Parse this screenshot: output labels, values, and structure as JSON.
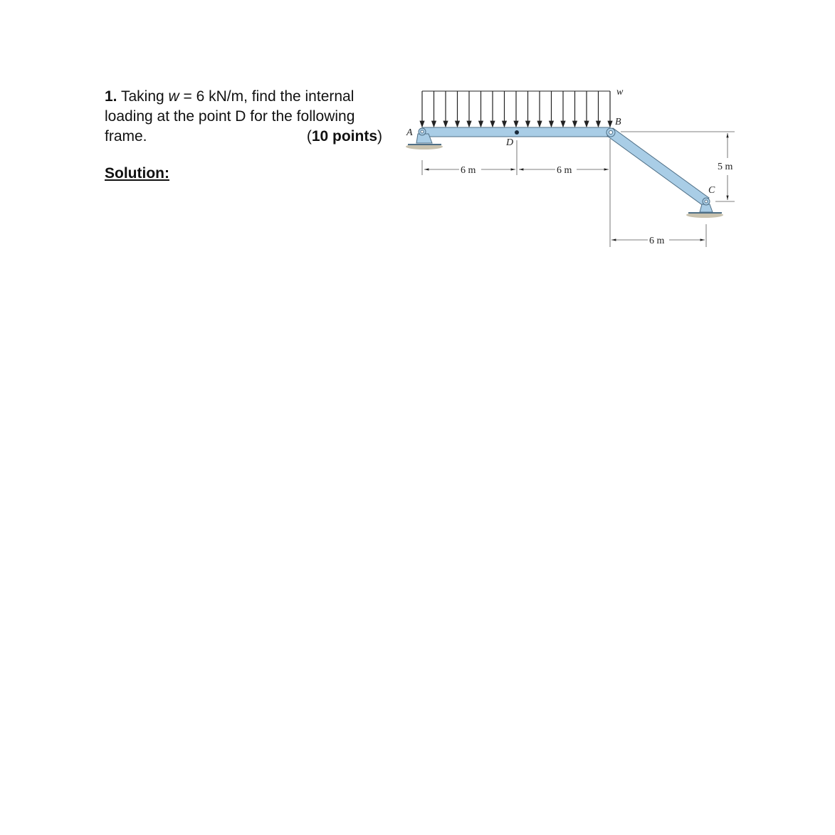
{
  "problem": {
    "number": "1.",
    "text_before_var": " Taking ",
    "variable": "w",
    "text_after_var": " = 6 kN/m, find the internal",
    "line2": "loading at the point D for the following",
    "line3": "frame.",
    "points_open": "(",
    "points": "10 points",
    "points_close": ")"
  },
  "solution_label": "Solution:",
  "figure": {
    "load_label": "w",
    "point_labels": {
      "A": "A",
      "B": "B",
      "C": "C",
      "D": "D"
    },
    "dimensions": {
      "AD": "6 m",
      "DB": "6 m",
      "BC_horizontal": "6 m",
      "BC_vertical": "5 m"
    },
    "load_arrow_count": 17,
    "colors": {
      "member": "#a9cde6",
      "member_edge": "#4f6f86",
      "support_shadow": "#c9c2ae"
    }
  }
}
